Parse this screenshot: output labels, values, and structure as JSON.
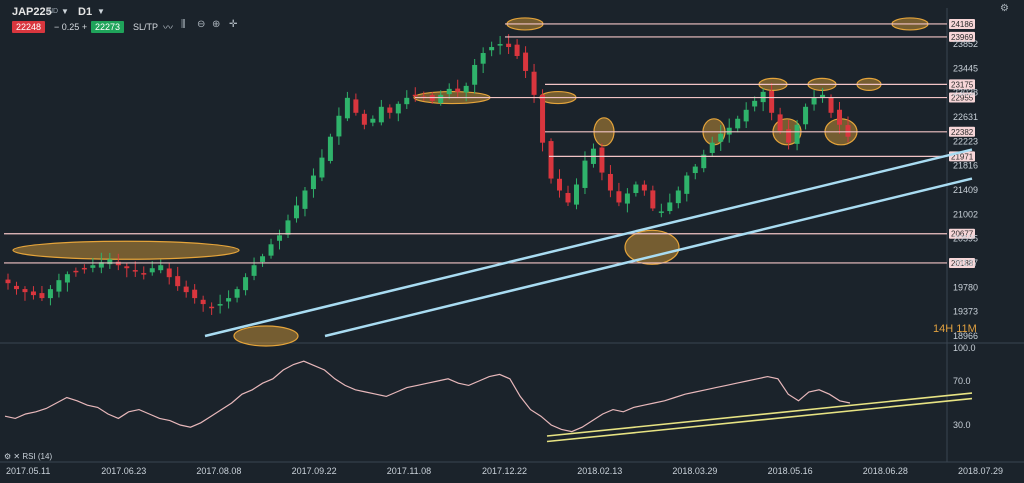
{
  "header": {
    "symbol": "JAP225",
    "symbol_sub": "IND",
    "timeframe": "D1",
    "bid": "22248",
    "spread": "0.25",
    "ask": "22273",
    "sltp_label": "SL/TP",
    "minus": "−",
    "plus": "+"
  },
  "timer": "14H 11M",
  "rsi_title": "RSI (14)",
  "colors": {
    "background": "#1b232b",
    "bull": "#2fb36b",
    "bear": "#d9363e",
    "level_line": "#f2c4c6",
    "trend_line": "#a9dcf2",
    "highlight": "#e5a43a",
    "rsi_line": "#e8b8bb",
    "rsi_trend": "#e7e383"
  },
  "chart_data": [
    {
      "type": "line",
      "subtype": "candlestick",
      "y_ticks": [
        23852,
        23445,
        23038,
        22631,
        22223,
        21816,
        21409,
        21002,
        20595,
        20187,
        19780,
        19373,
        18966
      ],
      "x_ticks": [
        "2017.05.11",
        "2017.06.23",
        "2017.08.08",
        "2017.09.22",
        "2017.11.08",
        "2017.12.22",
        "2018.02.13",
        "2018.03.29",
        "2018.05.16",
        "2018.06.28",
        "2018.07.29"
      ],
      "horizontal_levels": [
        24186,
        23969,
        23175,
        22955,
        22382,
        21971,
        20677,
        20188
      ],
      "approximate_closes": [
        19850,
        19750,
        19700,
        19650,
        19600,
        19750,
        19900,
        20000,
        20050,
        20100,
        20150,
        20200,
        20250,
        20150,
        20100,
        20050,
        20000,
        20100,
        20150,
        19950,
        19800,
        19700,
        19600,
        19500,
        19450,
        19500,
        19600,
        19750,
        19950,
        20150,
        20300,
        20500,
        20650,
        20900,
        21150,
        21400,
        21650,
        21950,
        22300,
        22650,
        22950,
        22700,
        22500,
        22600,
        22800,
        22700,
        22850,
        22950,
        23000,
        22950,
        22900,
        23000,
        23100,
        23050,
        23150,
        23500,
        23700,
        23800,
        23850,
        23800,
        23650,
        23400,
        23000,
        22200,
        21600,
        21400,
        21200,
        21500,
        21900,
        22100,
        21700,
        21400,
        21200,
        21350,
        21500,
        21400,
        21100,
        21050,
        21200,
        21400,
        21650,
        21800,
        22000,
        22200,
        22350,
        22450,
        22600,
        22750,
        22900,
        23050,
        22700,
        22400,
        22200,
        22500,
        22800,
        22950,
        23000,
        22700,
        22500,
        22300
      ]
    },
    {
      "type": "line",
      "name": "RSI (14)",
      "y_ticks": [
        100.0,
        70.0,
        30.0
      ],
      "ylim": [
        0,
        100
      ],
      "approximate_values": [
        38,
        36,
        40,
        42,
        45,
        50,
        55,
        52,
        48,
        46,
        40,
        36,
        42,
        44,
        40,
        36,
        34,
        30,
        28,
        32,
        38,
        44,
        50,
        58,
        62,
        68,
        72,
        80,
        85,
        88,
        84,
        80,
        72,
        66,
        62,
        60,
        58,
        56,
        60,
        64,
        66,
        68,
        70,
        72,
        68,
        66,
        70,
        74,
        76,
        72,
        56,
        44,
        38,
        30,
        26,
        24,
        28,
        34,
        40,
        44,
        42,
        46,
        48,
        50,
        52,
        55,
        58,
        60,
        62,
        64,
        66,
        68,
        70,
        72,
        74,
        72,
        58,
        52,
        60,
        62,
        58,
        52,
        50
      ]
    }
  ]
}
